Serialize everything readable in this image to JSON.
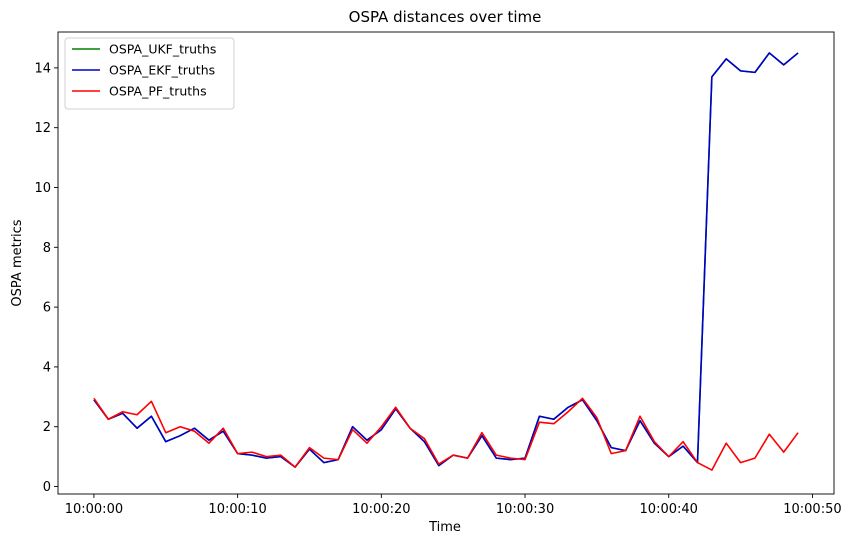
{
  "chart_data": {
    "type": "line",
    "title": "OSPA distances over time",
    "xlabel": "Time",
    "ylabel": "OSPA metrics",
    "xlim": [
      -2.5,
      51.5
    ],
    "ylim": [
      -0.25,
      15.2
    ],
    "xticks": [
      0,
      10,
      20,
      30,
      40,
      50
    ],
    "xtick_labels": [
      "10:00:00",
      "10:00:10",
      "10:00:20",
      "10:00:30",
      "10:00:40",
      "10:00:50"
    ],
    "yticks": [
      0,
      2,
      4,
      6,
      8,
      10,
      12,
      14
    ],
    "ytick_labels": [
      "0",
      "2",
      "4",
      "6",
      "8",
      "10",
      "12",
      "14"
    ],
    "legend_position": "top-left",
    "grid": false,
    "x": [
      0,
      1,
      2,
      3,
      4,
      5,
      6,
      7,
      8,
      9,
      10,
      11,
      12,
      13,
      14,
      15,
      16,
      17,
      18,
      19,
      20,
      21,
      22,
      23,
      24,
      25,
      26,
      27,
      28,
      29,
      30,
      31,
      32,
      33,
      34,
      35,
      36,
      37,
      38,
      39,
      40,
      41,
      42,
      43,
      44,
      45,
      46,
      47,
      48,
      49
    ],
    "series": [
      {
        "name": "OSPA_UKF_truths",
        "color": "#008000",
        "values": [
          2.9,
          2.25,
          2.45,
          1.95,
          2.35,
          1.5,
          1.7,
          1.95,
          1.55,
          1.85,
          1.1,
          1.05,
          0.95,
          1.0,
          0.65,
          1.25,
          0.8,
          0.9,
          2.0,
          1.55,
          1.9,
          2.6,
          1.95,
          1.5,
          0.7,
          1.05,
          0.95,
          1.7,
          0.95,
          0.9,
          0.95,
          2.35,
          2.25,
          2.65,
          2.9,
          2.2,
          1.3,
          1.2,
          2.2,
          1.45,
          1.0,
          1.35,
          0.8,
          13.7,
          14.3,
          13.9,
          13.85,
          14.5,
          14.1,
          14.5
        ]
      },
      {
        "name": "OSPA_EKF_truths",
        "color": "#0000cc",
        "values": [
          2.9,
          2.25,
          2.45,
          1.95,
          2.35,
          1.5,
          1.7,
          1.95,
          1.55,
          1.85,
          1.1,
          1.05,
          0.95,
          1.0,
          0.65,
          1.25,
          0.8,
          0.9,
          2.0,
          1.55,
          1.9,
          2.6,
          1.95,
          1.5,
          0.7,
          1.05,
          0.95,
          1.7,
          0.95,
          0.9,
          0.95,
          2.35,
          2.25,
          2.65,
          2.9,
          2.2,
          1.3,
          1.2,
          2.2,
          1.45,
          1.0,
          1.35,
          0.8,
          13.7,
          14.3,
          13.9,
          13.85,
          14.5,
          14.1,
          14.5
        ]
      },
      {
        "name": "OSPA_PF_truths",
        "color": "#ff0000",
        "values": [
          2.95,
          2.25,
          2.5,
          2.4,
          2.85,
          1.8,
          2.0,
          1.85,
          1.45,
          1.95,
          1.1,
          1.15,
          1.0,
          1.05,
          0.65,
          1.3,
          0.95,
          0.9,
          1.9,
          1.45,
          2.0,
          2.65,
          1.95,
          1.6,
          0.75,
          1.05,
          0.95,
          1.8,
          1.05,
          0.95,
          0.9,
          2.15,
          2.1,
          2.5,
          2.95,
          2.3,
          1.1,
          1.2,
          2.35,
          1.5,
          1.0,
          1.5,
          0.8,
          0.55,
          1.45,
          0.8,
          0.95,
          1.75,
          1.15,
          1.8
        ]
      }
    ]
  }
}
